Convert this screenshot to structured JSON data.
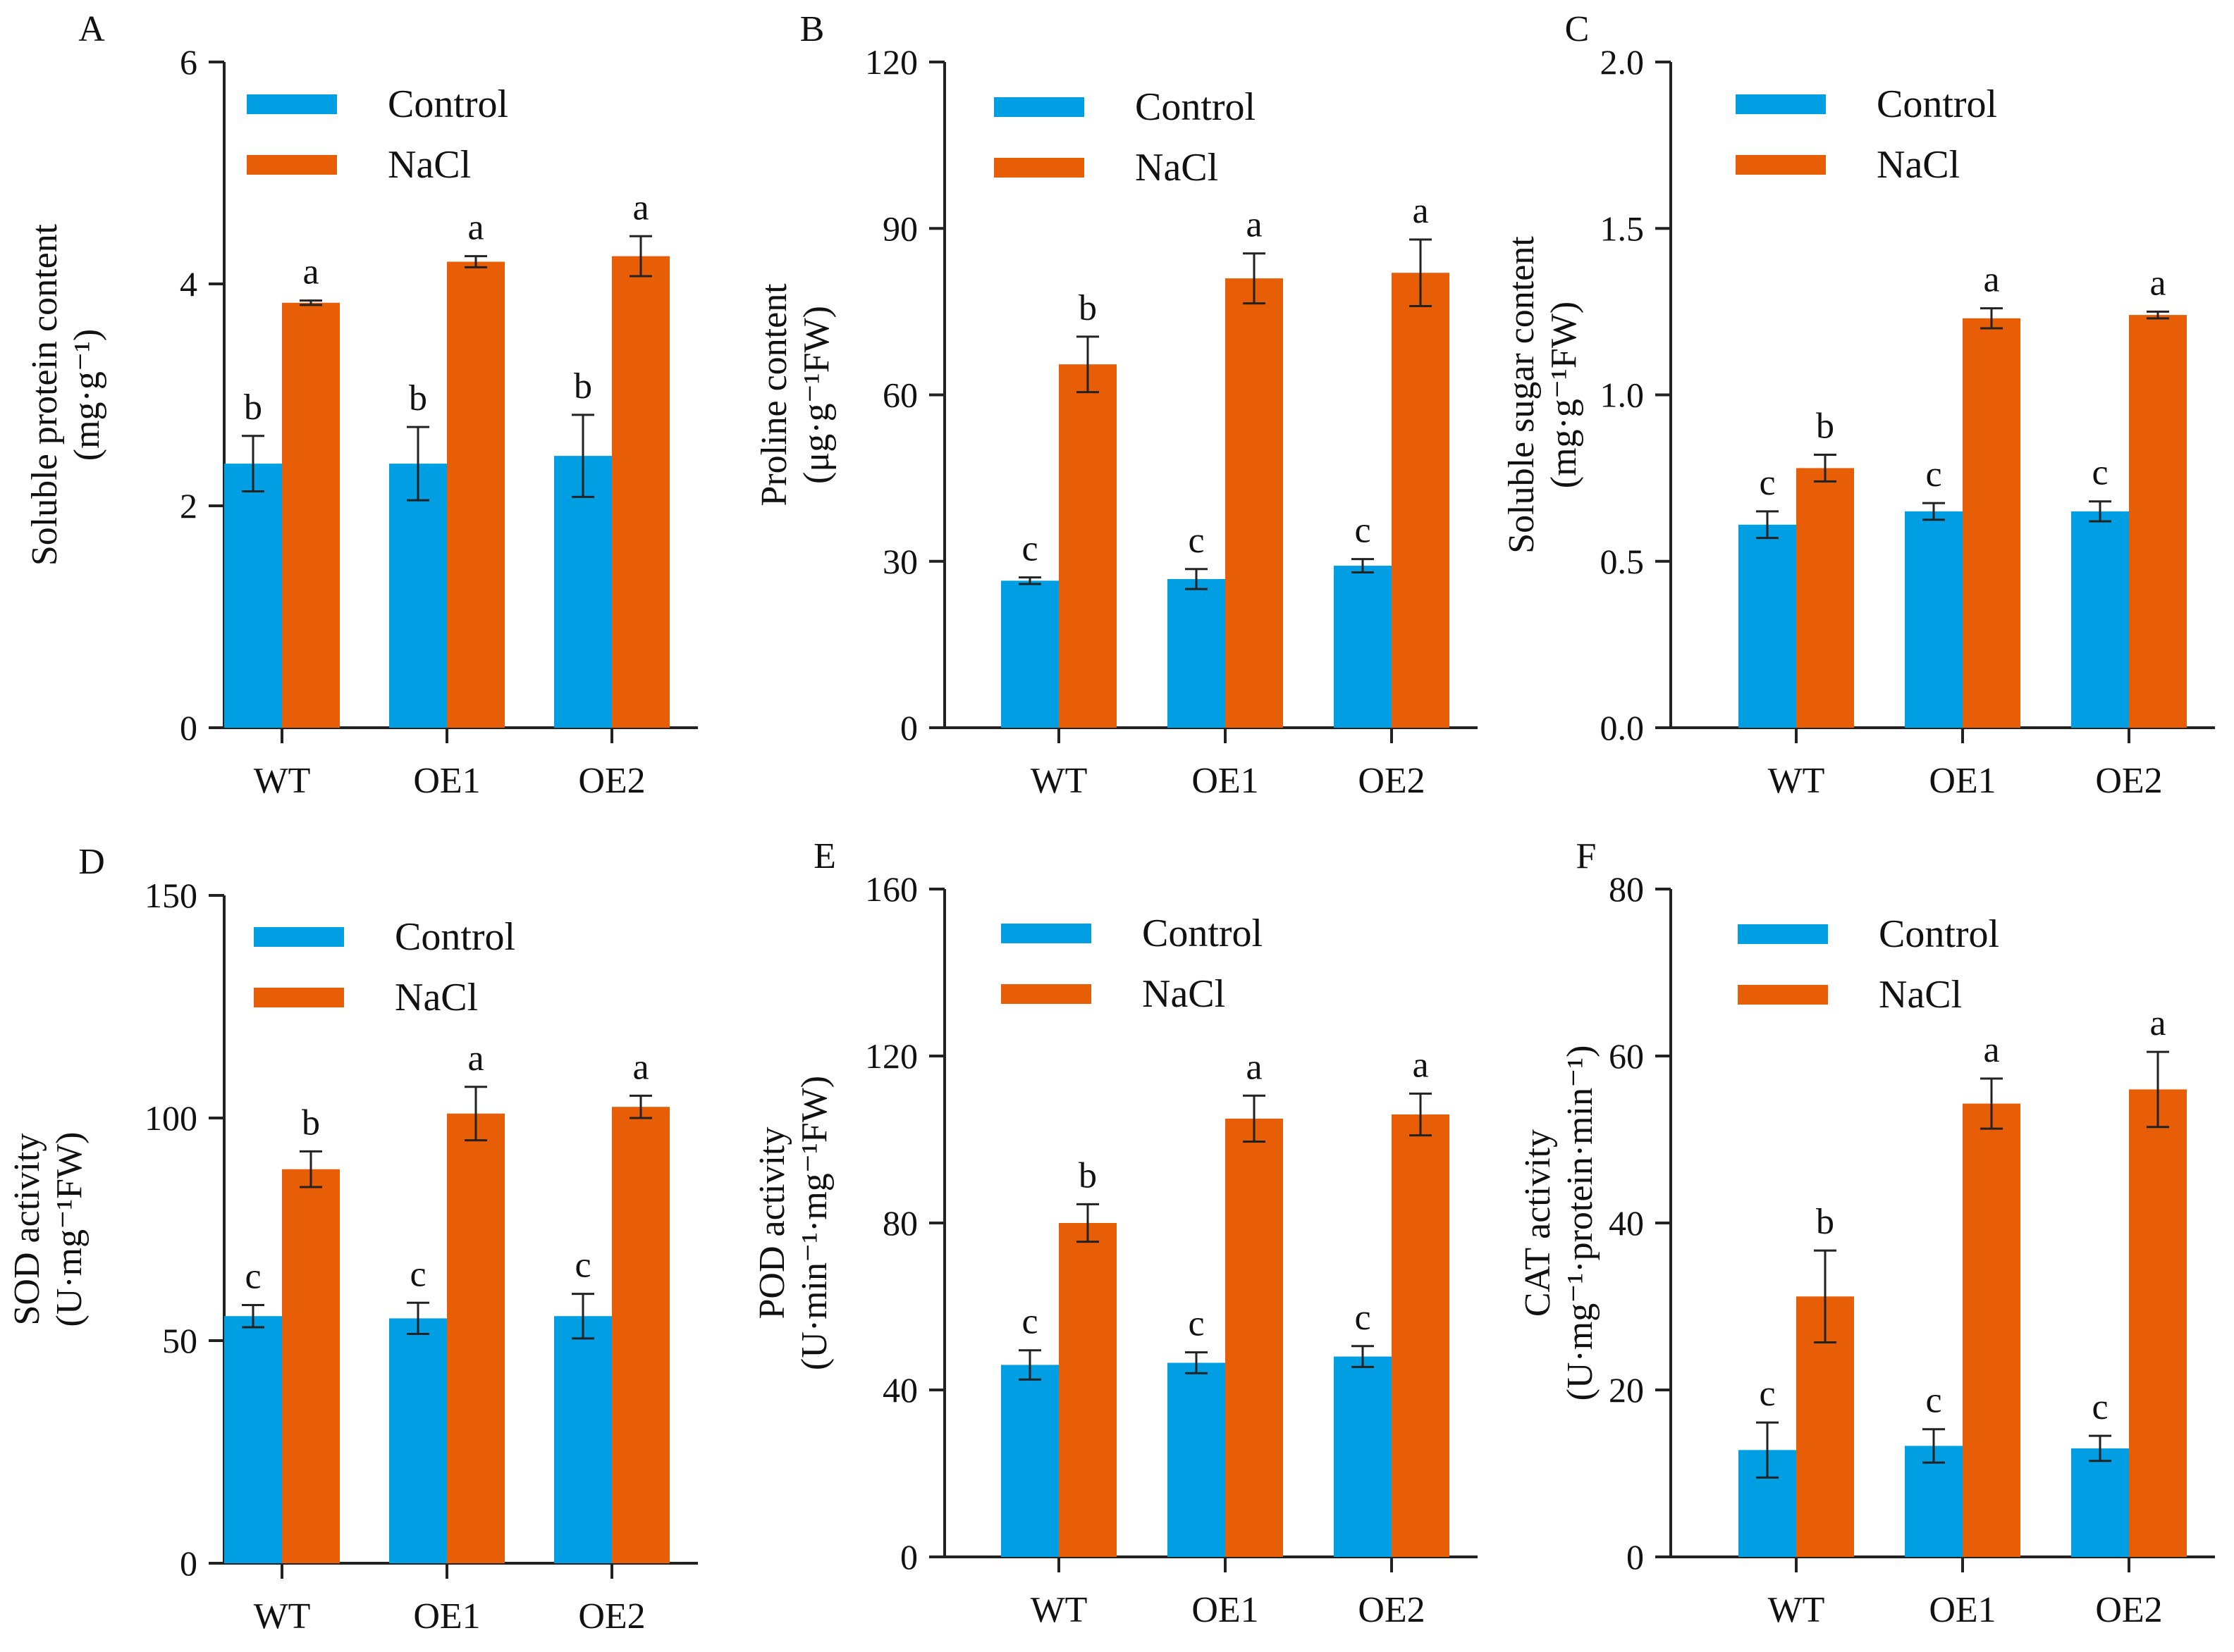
{
  "colors": {
    "control": "#009fe3",
    "nacl": "#e75e06",
    "axis": "#222222",
    "text": "#111111"
  },
  "chart_data": [
    {
      "type": "bar",
      "panel": "A",
      "ylabel_line1": "Soluble protein content",
      "ylabel_line2": "(mg·g⁻¹)",
      "categories": [
        "WT",
        "OE1",
        "OE2"
      ],
      "ylim": [
        0,
        6
      ],
      "yticks": [
        0,
        2,
        4,
        6
      ],
      "tick_decimals": 0,
      "legend": [
        "Control",
        "NaCl"
      ],
      "series": [
        {
          "name": "Control",
          "values": [
            2.38,
            2.38,
            2.45
          ],
          "errors": [
            0.25,
            0.33,
            0.37
          ],
          "letters": [
            "b",
            "b",
            "b"
          ]
        },
        {
          "name": "NaCl",
          "values": [
            3.83,
            4.2,
            4.25
          ],
          "errors": [
            0.02,
            0.05,
            0.18
          ],
          "letters": [
            "a",
            "a",
            "a"
          ]
        }
      ]
    },
    {
      "type": "bar",
      "panel": "B",
      "ylabel_line1": "Proline content",
      "ylabel_line2": "(μg·g⁻¹FW)",
      "categories": [
        "WT",
        "OE1",
        "OE2"
      ],
      "ylim": [
        0,
        120
      ],
      "yticks": [
        0,
        30,
        60,
        90,
        120
      ],
      "tick_decimals": 0,
      "legend": [
        "Control",
        "NaCl"
      ],
      "series": [
        {
          "name": "Control",
          "values": [
            26.5,
            26.8,
            29.2
          ],
          "errors": [
            0.6,
            1.8,
            1.2
          ],
          "letters": [
            "c",
            "c",
            "c"
          ]
        },
        {
          "name": "NaCl",
          "values": [
            65.5,
            81.0,
            82.0
          ],
          "errors": [
            5.0,
            4.5,
            6.0
          ],
          "letters": [
            "b",
            "a",
            "a"
          ]
        }
      ]
    },
    {
      "type": "bar",
      "panel": "C",
      "ylabel_line1": "Soluble sugar content",
      "ylabel_line2": "(mg·g⁻¹FW)",
      "categories": [
        "WT",
        "OE1",
        "OE2"
      ],
      "ylim": [
        0,
        2
      ],
      "yticks": [
        0,
        0.5,
        1.0,
        1.5,
        2.0
      ],
      "tick_decimals": 1,
      "legend": [
        "Control",
        "NaCl"
      ],
      "series": [
        {
          "name": "Control",
          "values": [
            0.61,
            0.65,
            0.65
          ],
          "errors": [
            0.04,
            0.025,
            0.03
          ],
          "letters": [
            "c",
            "c",
            "c"
          ]
        },
        {
          "name": "NaCl",
          "values": [
            0.78,
            1.23,
            1.24
          ],
          "errors": [
            0.04,
            0.03,
            0.01
          ],
          "letters": [
            "b",
            "a",
            "a"
          ]
        }
      ]
    },
    {
      "type": "bar",
      "panel": "D",
      "ylabel_line1": "SOD activity",
      "ylabel_line2": "(U·mg⁻¹FW)",
      "categories": [
        "WT",
        "OE1",
        "OE2"
      ],
      "ylim": [
        0,
        150
      ],
      "yticks": [
        0,
        50,
        100,
        150
      ],
      "tick_decimals": 0,
      "legend": [
        "Control",
        "NaCl"
      ],
      "series": [
        {
          "name": "Control",
          "values": [
            55.5,
            55.0,
            55.5
          ],
          "errors": [
            2.5,
            3.5,
            5.0
          ],
          "letters": [
            "c",
            "c",
            "c"
          ]
        },
        {
          "name": "NaCl",
          "values": [
            88.5,
            101.0,
            102.5
          ],
          "errors": [
            4.0,
            6.0,
            2.5
          ],
          "letters": [
            "b",
            "a",
            "a"
          ]
        }
      ]
    },
    {
      "type": "bar",
      "panel": "E",
      "ylabel_line1": "POD activity",
      "ylabel_line2": "(U·min⁻¹·mg⁻¹FW)",
      "categories": [
        "WT",
        "OE1",
        "OE2"
      ],
      "ylim": [
        0,
        160
      ],
      "yticks": [
        0,
        40,
        80,
        120,
        160
      ],
      "tick_decimals": 0,
      "legend": [
        "Control",
        "NaCl"
      ],
      "series": [
        {
          "name": "Control",
          "values": [
            46.0,
            46.5,
            48.0
          ],
          "errors": [
            3.5,
            2.5,
            2.5
          ],
          "letters": [
            "c",
            "c",
            "c"
          ]
        },
        {
          "name": "NaCl",
          "values": [
            80.0,
            105.0,
            106.0
          ],
          "errors": [
            4.5,
            5.5,
            5.0
          ],
          "letters": [
            "b",
            "a",
            "a"
          ]
        }
      ]
    },
    {
      "type": "bar",
      "panel": "F",
      "ylabel_line1": "CAT activity",
      "ylabel_line2": "(U·mg⁻¹·protein·min⁻¹)",
      "categories": [
        "WT",
        "OE1",
        "OE2"
      ],
      "ylim": [
        0,
        80
      ],
      "yticks": [
        0,
        20,
        40,
        60,
        80
      ],
      "tick_decimals": 0,
      "legend": [
        "Control",
        "NaCl"
      ],
      "series": [
        {
          "name": "Control",
          "values": [
            12.8,
            13.3,
            13.0
          ],
          "errors": [
            3.3,
            2.0,
            1.5
          ],
          "letters": [
            "c",
            "c",
            "c"
          ]
        },
        {
          "name": "NaCl",
          "values": [
            31.2,
            54.3,
            56.0
          ],
          "errors": [
            5.5,
            3.0,
            4.5
          ],
          "letters": [
            "b",
            "a",
            "a"
          ]
        }
      ]
    }
  ]
}
